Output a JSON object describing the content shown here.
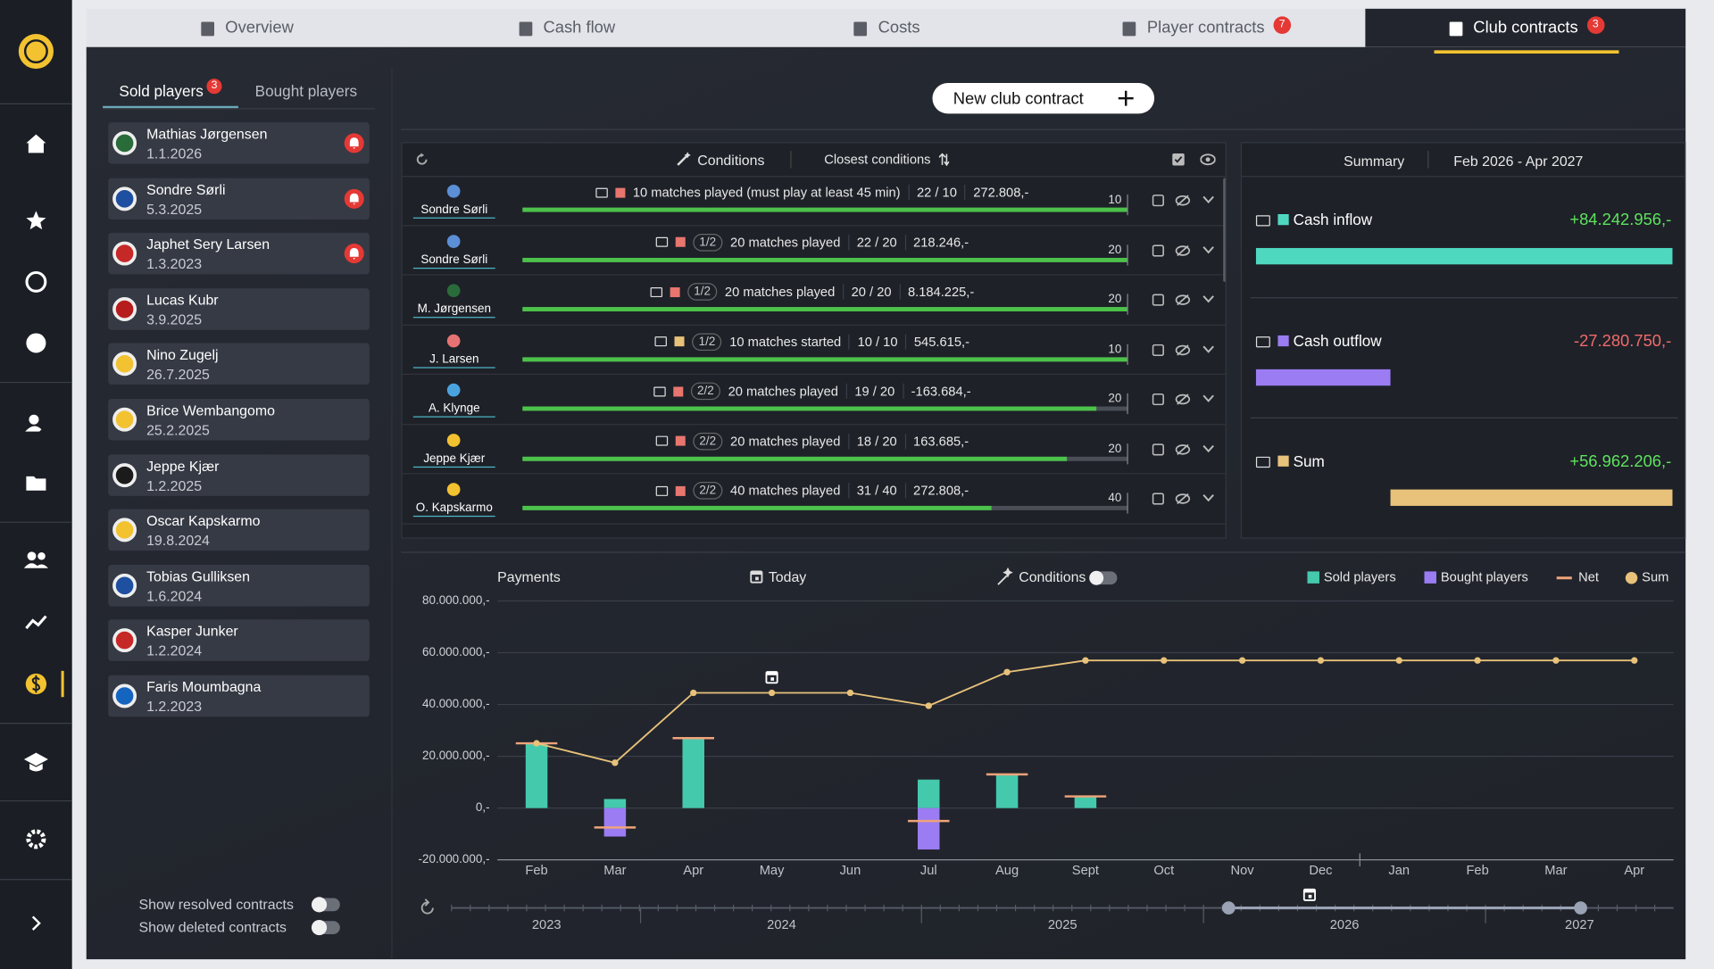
{
  "tabs": [
    {
      "label": "Overview"
    },
    {
      "label": "Cash flow"
    },
    {
      "label": "Costs"
    },
    {
      "label": "Player contracts",
      "badge": 7
    },
    {
      "label": "Club contracts",
      "badge": 3,
      "active": true
    }
  ],
  "sidebar": {
    "tabs": [
      {
        "label": "Sold players",
        "badge": 3,
        "active": true
      },
      {
        "label": "Bought players"
      }
    ],
    "players": [
      {
        "name": "Mathias Jørgensen",
        "date": "1.1.2026",
        "alert": true
      },
      {
        "name": "Sondre Sørli",
        "date": "5.3.2025",
        "alert": true
      },
      {
        "name": "Japhet Sery Larsen",
        "date": "1.3.2023",
        "alert": true
      },
      {
        "name": "Lucas Kubr",
        "date": "3.9.2025"
      },
      {
        "name": "Nino Zugelj",
        "date": "26.7.2025"
      },
      {
        "name": "Brice Wembangomo",
        "date": "25.2.2025"
      },
      {
        "name": "Jeppe Kjær",
        "date": "1.2.2025"
      },
      {
        "name": "Oscar Kapskarmo",
        "date": "19.8.2024"
      },
      {
        "name": "Tobias Gulliksen",
        "date": "1.6.2024"
      },
      {
        "name": "Kasper Junker",
        "date": "1.2.2024"
      },
      {
        "name": "Faris Moumbagna",
        "date": "1.2.2023"
      }
    ],
    "toggles": [
      "Show resolved contracts",
      "Show deleted contracts"
    ]
  },
  "new_contract_button": "New club contract",
  "contracts": {
    "header": {
      "conditions": "Conditions",
      "sort": "Closest conditions"
    },
    "rows": [
      {
        "player": "Sondre Sørli",
        "condition": "10 matches played (must play at least 45 min)",
        "progress": "22 / 10",
        "amount": "272.808,-",
        "color": "#e8766e",
        "count": 22,
        "target": 10
      },
      {
        "player": "Sondre Sørli",
        "part": "1/2",
        "condition": "20 matches played",
        "progress": "22 / 20",
        "amount": "218.246,-",
        "color": "#e8766e",
        "count": 22,
        "target": 20
      },
      {
        "player": "M. Jørgensen",
        "part": "1/2",
        "condition": "20 matches played",
        "progress": "20 / 20",
        "amount": "8.184.225,-",
        "color": "#e8766e",
        "count": 20,
        "target": 20
      },
      {
        "player": "J. Larsen",
        "part": "1/2",
        "condition": "10 matches started",
        "progress": "10 / 10",
        "amount": "545.615,-",
        "color": "#e8c27a",
        "count": 10,
        "target": 10
      },
      {
        "player": "A. Klynge",
        "part": "2/2",
        "condition": "20 matches played",
        "progress": "19 / 20",
        "amount": "-163.684,-",
        "color": "#e8766e",
        "count": 19,
        "target": 20
      },
      {
        "player": "Jeppe Kjær",
        "part": "2/2",
        "condition": "20 matches played",
        "progress": "18 / 20",
        "amount": "163.685,-",
        "color": "#e8766e",
        "count": 18,
        "target": 20
      },
      {
        "player": "O. Kapskarmo",
        "part": "2/2",
        "condition": "40 matches played",
        "progress": "31 / 40",
        "amount": "272.808,-",
        "color": "#e8766e",
        "count": 31,
        "target": 40
      }
    ]
  },
  "summary": {
    "title": "Summary",
    "period": "Feb 2026 - Apr 2027",
    "items": [
      {
        "label": "Cash inflow",
        "value": 84242956,
        "value_label": "+84.242.956,-",
        "color": "#4fd8c0"
      },
      {
        "label": "Cash outflow",
        "value": -27280750,
        "value_label": "-27.280.750,-",
        "color": "#9b7cf2"
      },
      {
        "label": "Sum",
        "value": 56962206,
        "value_label": "+56.962.206,-",
        "color": "#e8c27a"
      }
    ]
  },
  "chart_data": {
    "type": "bar",
    "title": "Payments",
    "today": "Today",
    "conditions": "Conditions",
    "categories": [
      "Feb",
      "Mar",
      "Apr",
      "May",
      "Jun",
      "Jul",
      "Aug",
      "Sept",
      "Oct",
      "Nov",
      "Dec",
      "Jan",
      "Feb",
      "Mar",
      "Apr"
    ],
    "series": [
      {
        "name": "Sold players",
        "type": "bar",
        "color": "#45c9ad",
        "values": [
          25000000,
          3500000,
          27000000,
          null,
          null,
          11000000,
          13000000,
          4500000,
          null,
          null,
          null,
          null,
          null,
          null,
          null
        ]
      },
      {
        "name": "Bought players",
        "type": "bar",
        "color": "#9b7cf2",
        "values": [
          null,
          -11000000,
          null,
          null,
          null,
          -16000000,
          null,
          null,
          null,
          null,
          null,
          null,
          null,
          null,
          null
        ]
      },
      {
        "name": "Net",
        "type": "tick",
        "color": "#f0a37a",
        "values": [
          25000000,
          -7500000,
          27000000,
          null,
          null,
          -5000000,
          13000000,
          4500000,
          null,
          null,
          null,
          null,
          null,
          null,
          null
        ]
      },
      {
        "name": "Sum",
        "type": "line",
        "color": "#e8c27a",
        "values": [
          25000000,
          17500000,
          44500000,
          44500000,
          44500000,
          39500000,
          52500000,
          57000000,
          57000000,
          57000000,
          57000000,
          57000000,
          57000000,
          57000000,
          57000000
        ]
      }
    ],
    "ylim": [
      -20000000,
      80000000
    ],
    "yticks": [
      {
        "value": -20000000,
        "label": "-20.000.000,-"
      },
      {
        "value": 0,
        "label": "0,-"
      },
      {
        "value": 20000000,
        "label": "20.000.000,-"
      },
      {
        "value": 40000000,
        "label": "40.000.000,-"
      },
      {
        "value": 60000000,
        "label": "60.000.000,-"
      },
      {
        "value": 80000000,
        "label": "80.000.000,-"
      }
    ],
    "grid": true,
    "legend": "top-right"
  },
  "timeline": {
    "years": [
      "2023",
      "2024",
      "2025",
      "2026",
      "2027"
    ]
  }
}
